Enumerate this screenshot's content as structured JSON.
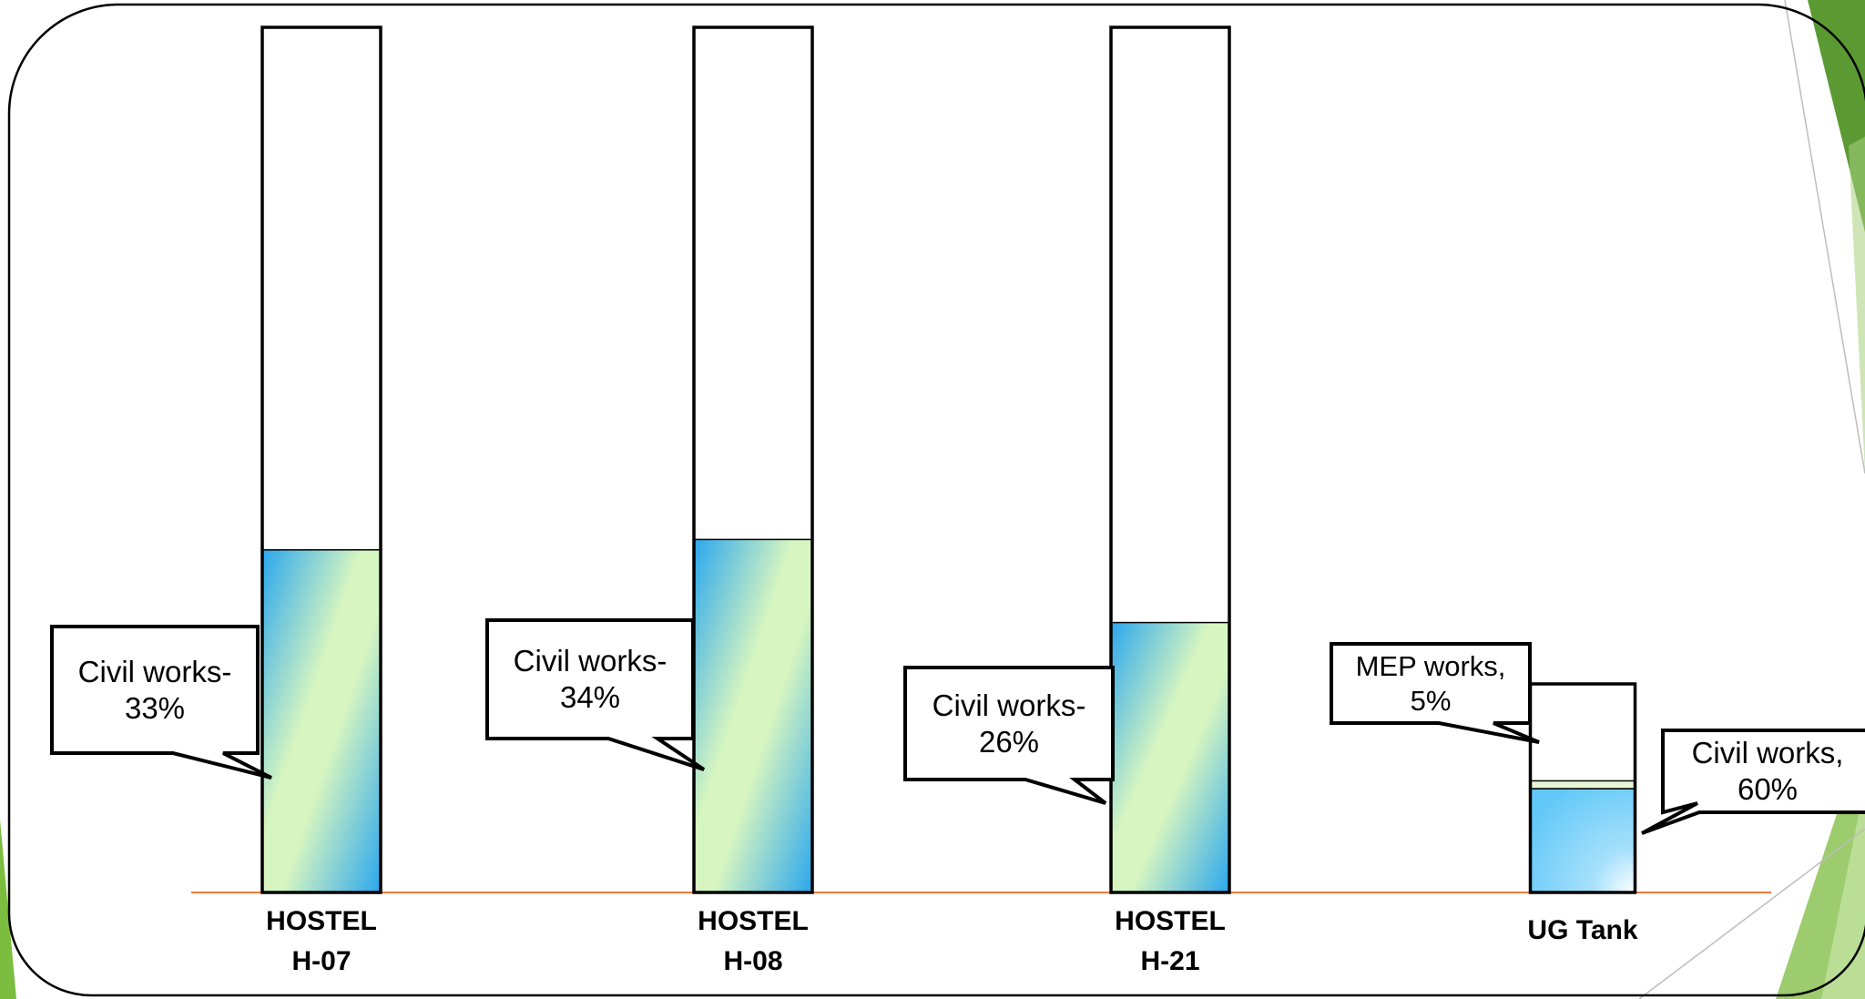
{
  "chart_data": {
    "type": "bar",
    "categories": [
      "HOSTEL\nH-07",
      "HOSTEL\nH-08",
      "HOSTEL\nH-21",
      "UG Tank"
    ],
    "series": [
      {
        "values": [
          33,
          34,
          26,
          60
        ]
      },
      {
        "values": [
          0,
          0,
          0,
          5
        ]
      }
    ],
    "annotations": [
      {
        "category": "HOSTEL\nH-07",
        "text": "Civil works-33%"
      },
      {
        "category": "HOSTEL\nH-08",
        "text": "Civil works-34%"
      },
      {
        "category": "HOSTEL\nH-21",
        "text": "Civil works-26%"
      },
      {
        "category": "UG Tank",
        "text": "MEP works, 5%"
      },
      {
        "category": "UG Tank",
        "text": "Civil works, 60%"
      }
    ],
    "ylim": [
      0,
      77
    ],
    "grid": false,
    "legend": "none",
    "colors": {
      "fill_green": "#d6f5c0",
      "fill_blue": "#2aa7ee",
      "baseline": "#f0793a",
      "mep": "#e8f6d8",
      "tank_blue": "#62c8f7",
      "accent_green": "#6aa63a"
    }
  }
}
